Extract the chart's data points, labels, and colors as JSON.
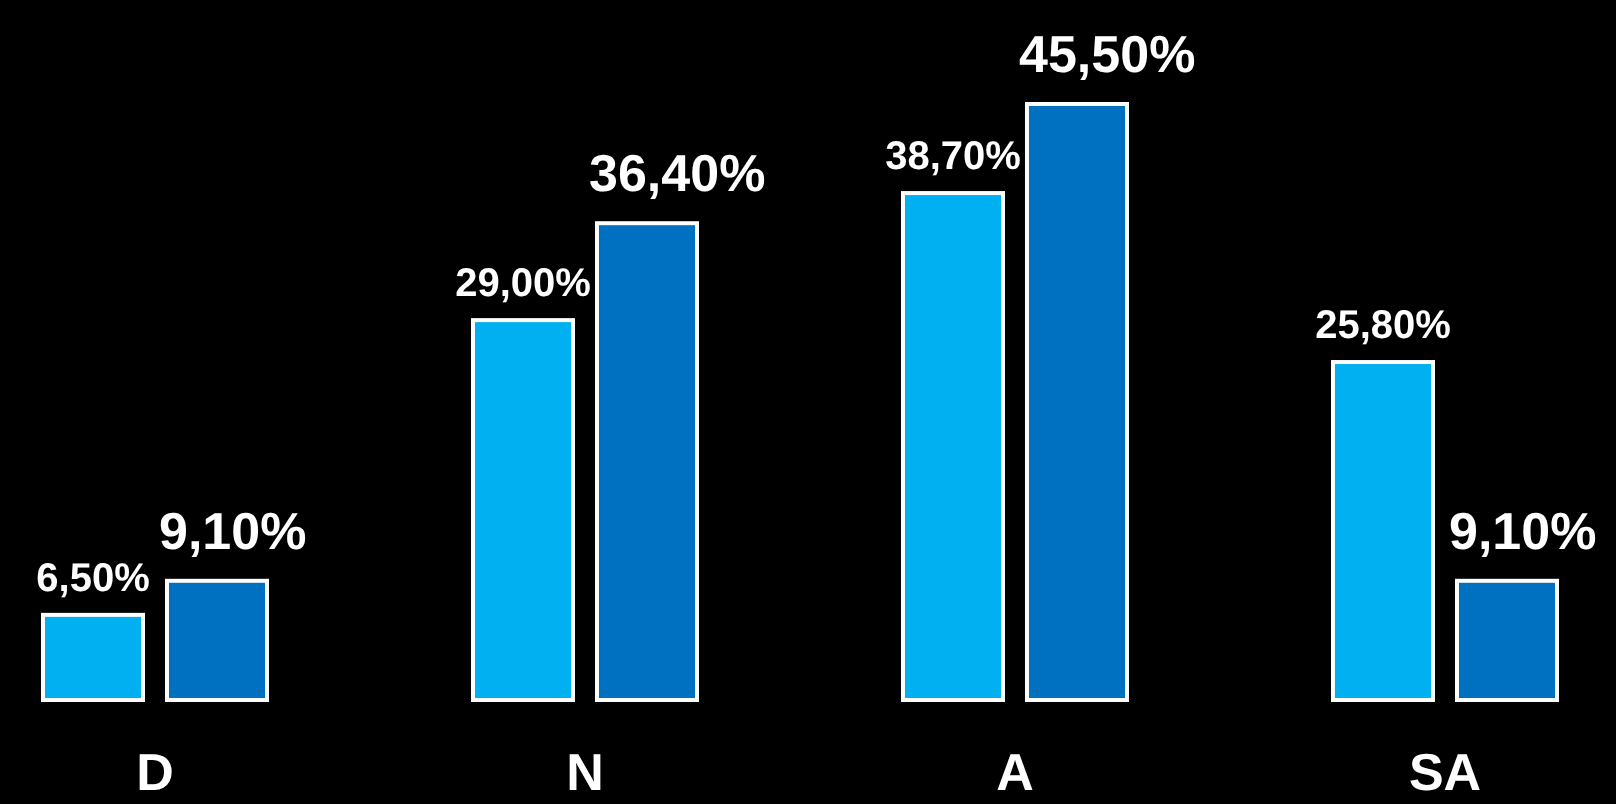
{
  "chart_data": {
    "type": "bar",
    "categories": [
      "D",
      "N",
      "A",
      "SA"
    ],
    "series": [
      {
        "color": "#00b0f0",
        "values": [
          6.5,
          29.0,
          38.7,
          25.8
        ],
        "value_labels": [
          "6,50%",
          "29,00%",
          "38,70%",
          "25,80%"
        ]
      },
      {
        "color": "#0070c0",
        "values": [
          9.1,
          36.4,
          45.5,
          9.1
        ],
        "value_labels": [
          "9,10%",
          "36,40%",
          "45,50%",
          "9,10%"
        ]
      }
    ]
  }
}
